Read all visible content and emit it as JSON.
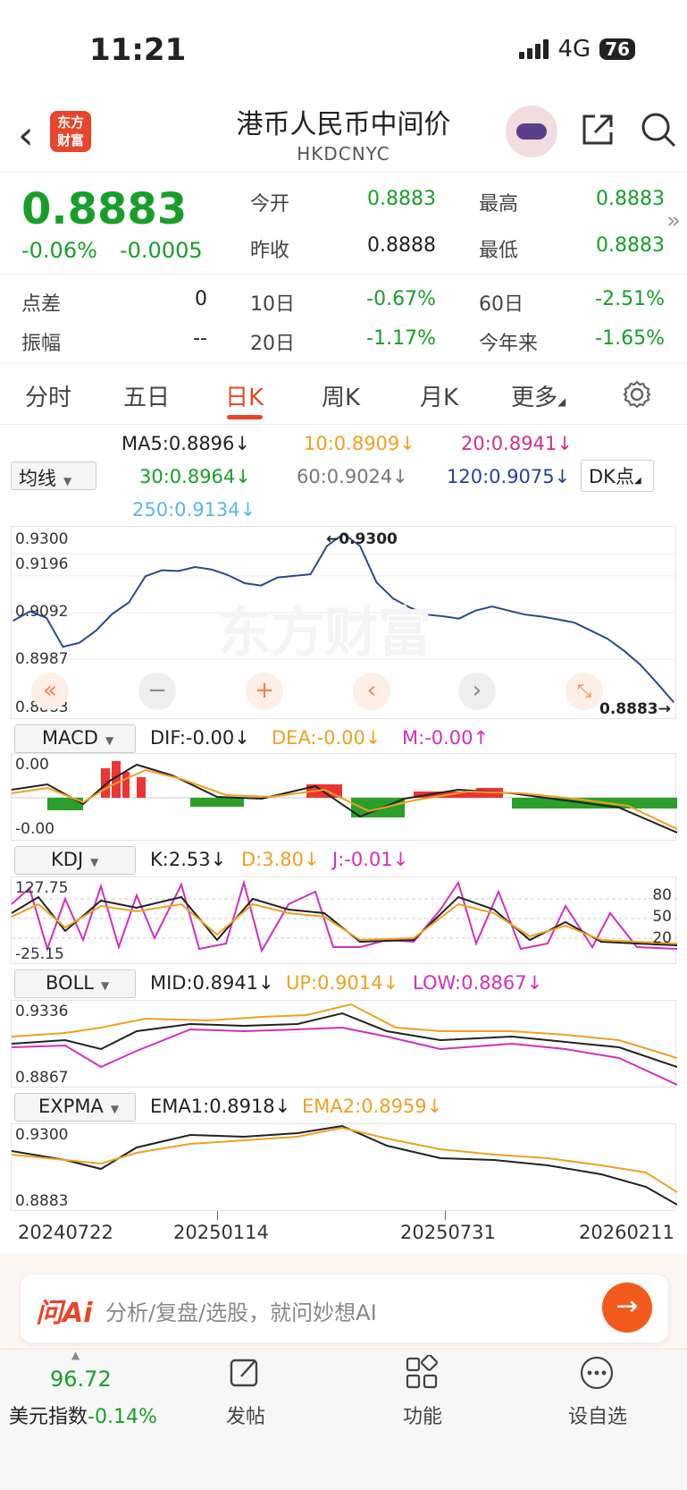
{
  "status": {
    "time": "11:21",
    "network": "4G",
    "battery": "76"
  },
  "header": {
    "title": "港币人民币中间价",
    "code": "HKDCNYC",
    "logo": "东方\n财富"
  },
  "quote": {
    "price": "0.8883",
    "change_pct": "-0.06%",
    "change_abs": "-0.0005",
    "open_label": "今开",
    "open": "0.8883",
    "high_label": "最高",
    "high": "0.8883",
    "prev_label": "昨收",
    "prev": "0.8888",
    "low_label": "最低",
    "low": "0.8883",
    "spread_label": "点差",
    "spread": "0",
    "d10_label": "10日",
    "d10": "-0.67%",
    "d60_label": "60日",
    "d60": "-2.51%",
    "amp_label": "振幅",
    "amp": "--",
    "d20_label": "20日",
    "d20": "-1.17%",
    "ytd_label": "今年来",
    "ytd": "-1.65%"
  },
  "tabs": [
    "分时",
    "五日",
    "日K",
    "周K",
    "月K",
    "更多"
  ],
  "ma": {
    "selector": "均线",
    "dk": "DK点",
    "ma5": "MA5:0.8896",
    "ma10": "10:0.8909",
    "ma20": "20:0.8941",
    "ma30": "30:0.8964",
    "ma60": "60:0.9024",
    "ma120": "120:0.9075",
    "ma250": "250:0.9134"
  },
  "main_chart": {
    "y_labels": [
      "0.9300",
      "0.9196",
      "0.9092",
      "0.8987",
      "0.8883"
    ],
    "max_marker": "0.9300",
    "last_marker": "0.8883",
    "watermark": "东方财富"
  },
  "macd": {
    "selector": "MACD",
    "dif": "DIF:-0.00",
    "dea": "DEA:-0.00",
    "m": "M:-0.00",
    "top": "0.00",
    "bottom": "-0.00"
  },
  "kdj": {
    "selector": "KDJ",
    "k": "K:2.53",
    "d": "D:3.80",
    "j": "J:-0.01",
    "top": "127.75",
    "bottom": "-25.15",
    "levels": [
      "80",
      "50",
      "20"
    ]
  },
  "boll": {
    "selector": "BOLL",
    "mid": "MID:0.8941",
    "up": "UP:0.9014",
    "low": "LOW:0.8867",
    "top": "0.9336",
    "bottom": "0.8867"
  },
  "expma": {
    "selector": "EXPMA",
    "ema1": "EMA1:0.8918",
    "ema2": "EMA2:0.8959",
    "top": "0.9300",
    "bottom": "0.8883"
  },
  "dates": [
    "20240722",
    "20250114",
    "20250731",
    "20260211"
  ],
  "ai": {
    "logo": "问Ai",
    "placeholder": "分析/复盘/选股，就问妙想AI"
  },
  "bottom": {
    "index_value": "96.72",
    "index_label": "美元指数",
    "index_change": "-0.14%",
    "post": "发帖",
    "func": "功能",
    "watch": "设自选"
  },
  "chart_data": {
    "type": "line",
    "title": "",
    "xlabel": "",
    "ylabel": "",
    "x_ticks": [
      "20240722",
      "20250114",
      "20250731",
      "20260211"
    ],
    "ylim": [
      0.8883,
      0.93
    ],
    "series": [
      {
        "name": "",
        "values": [
          0.9085,
          0.9108,
          0.9092,
          0.902,
          0.903,
          0.906,
          0.9102,
          0.913,
          0.9195,
          0.921,
          0.9208,
          0.9218,
          0.9212,
          0.9198,
          0.9178,
          0.9172,
          0.9192,
          0.9196,
          0.92,
          0.927,
          0.93,
          0.927,
          0.918,
          0.914,
          0.9118,
          0.91,
          0.9096,
          0.909,
          0.911,
          0.912,
          0.911,
          0.91,
          0.9095,
          0.9088,
          0.908,
          0.906,
          0.904,
          0.901,
          0.8975,
          0.893,
          0.8883
        ]
      }
    ]
  }
}
